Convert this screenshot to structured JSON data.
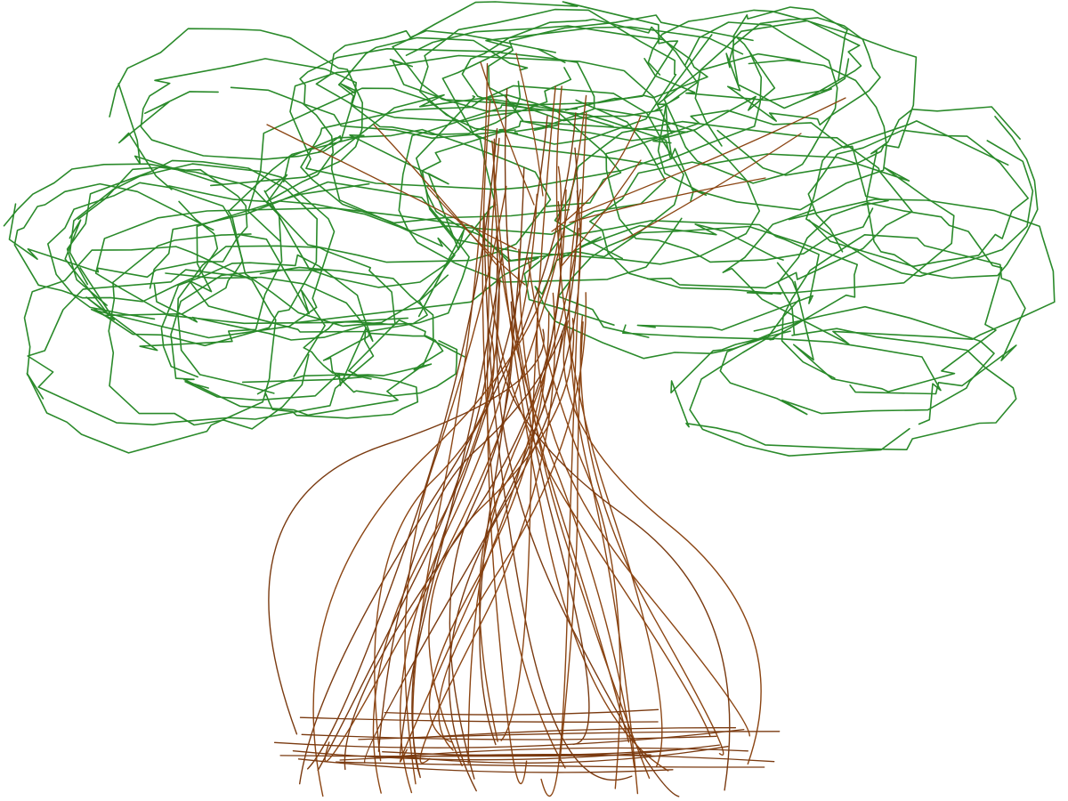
{
  "canvas": {
    "background": "#ffffff"
  },
  "drawing": {
    "subject": "tree",
    "colors": {
      "foliage": "#2a8a2a",
      "trunk": "#8b4513",
      "trunk_dark": "#7a3a10"
    }
  }
}
